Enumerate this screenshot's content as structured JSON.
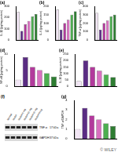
{
  "chart_data": [
    {
      "type": "bar",
      "title": "(a)",
      "y_label": "IL-1β (pg/mg protein)",
      "categories": [
        null,
        null,
        null,
        null,
        null,
        null
      ],
      "values": [
        250,
        80,
        140,
        170,
        210,
        230
      ],
      "colors": [
        "#f2e6f5",
        "#5a2d82",
        "#b23a9c",
        "#d86fbf",
        "#4caf50",
        "#2e7d32"
      ],
      "ylim": [
        0,
        300
      ],
      "yticks": [
        0,
        100,
        200,
        300
      ],
      "grid": false,
      "tick_labels": "y"
    },
    {
      "type": "bar",
      "title": "(b)",
      "y_label": "IL-6 (pg/mg protein)",
      "categories": [
        null,
        null,
        null,
        null,
        null,
        null
      ],
      "values": [
        180,
        60,
        100,
        120,
        150,
        170
      ],
      "colors": [
        "#f2e6f5",
        "#5a2d82",
        "#b23a9c",
        "#d86fbf",
        "#4caf50",
        "#2e7d32"
      ],
      "ylim": [
        0,
        200
      ],
      "yticks": [
        0,
        50,
        100,
        150,
        200
      ],
      "grid": false,
      "tick_labels": "y"
    },
    {
      "type": "bar",
      "title": "(c)",
      "y_label": "TNF-α (pg/mg protein)",
      "categories": [
        null,
        null,
        null,
        null,
        null,
        null
      ],
      "values": [
        320,
        120,
        200,
        230,
        280,
        300
      ],
      "colors": [
        "#f2e6f5",
        "#5a2d82",
        "#b23a9c",
        "#d86fbf",
        "#4caf50",
        "#2e7d32"
      ],
      "ylim": [
        0,
        400
      ],
      "yticks": [
        0,
        100,
        200,
        300,
        400
      ],
      "grid": false,
      "tick_labels": "y"
    },
    {
      "type": "bar",
      "title": "(d)",
      "y_label": "NF-κB (pg/mg protein)",
      "categories": [
        null,
        null,
        null,
        null,
        null,
        null
      ],
      "values": [
        2,
        9,
        6,
        5,
        4,
        3
      ],
      "colors": [
        "#f2e6f5",
        "#5a2d82",
        "#b23a9c",
        "#d86fbf",
        "#4caf50",
        "#2e7d32"
      ],
      "ylim": [
        0,
        10
      ],
      "yticks": [
        0,
        5,
        10
      ],
      "grid": false,
      "tick_labels": "y"
    },
    {
      "type": "bar",
      "title": "(e)",
      "y_label": "IL-10 (pg/mg protein)",
      "categories": [
        null,
        null,
        null,
        null,
        null,
        null
      ],
      "values": [
        40,
        200,
        150,
        120,
        90,
        70
      ],
      "colors": [
        "#f2e6f5",
        "#5a2d82",
        "#b23a9c",
        "#d86fbf",
        "#4caf50",
        "#2e7d32"
      ],
      "ylim": [
        0,
        250
      ],
      "yticks": [
        0,
        50,
        100,
        150,
        200,
        250
      ],
      "grid": false,
      "tick_labels": "y"
    },
    {
      "type": "bar",
      "title": "(g)",
      "y_label": "TNF-α/GAPDH",
      "categories": [
        null,
        null,
        null,
        null,
        null,
        null
      ],
      "values": [
        1.0,
        3.2,
        2.4,
        2.0,
        1.6,
        1.3
      ],
      "colors": [
        "#f2e6f5",
        "#5a2d82",
        "#b23a9c",
        "#d86fbf",
        "#4caf50",
        "#2e7d32"
      ],
      "ylim": [
        0,
        4
      ],
      "yticks": [
        0,
        1,
        2,
        3,
        4
      ],
      "grid": false,
      "tick_labels": "y"
    }
  ],
  "blot": {
    "title": "(f)",
    "groups": [
      "Normal",
      "Model",
      "Model+5 mg",
      "Model+10 mg",
      "Model+20 mg",
      "Model+Drug"
    ],
    "rows": [
      {
        "name": "TNF-α",
        "size": "17 kDa"
      },
      {
        "name": "GAPDH",
        "size": "37 kDa"
      }
    ]
  },
  "watermark": "© WILEY"
}
